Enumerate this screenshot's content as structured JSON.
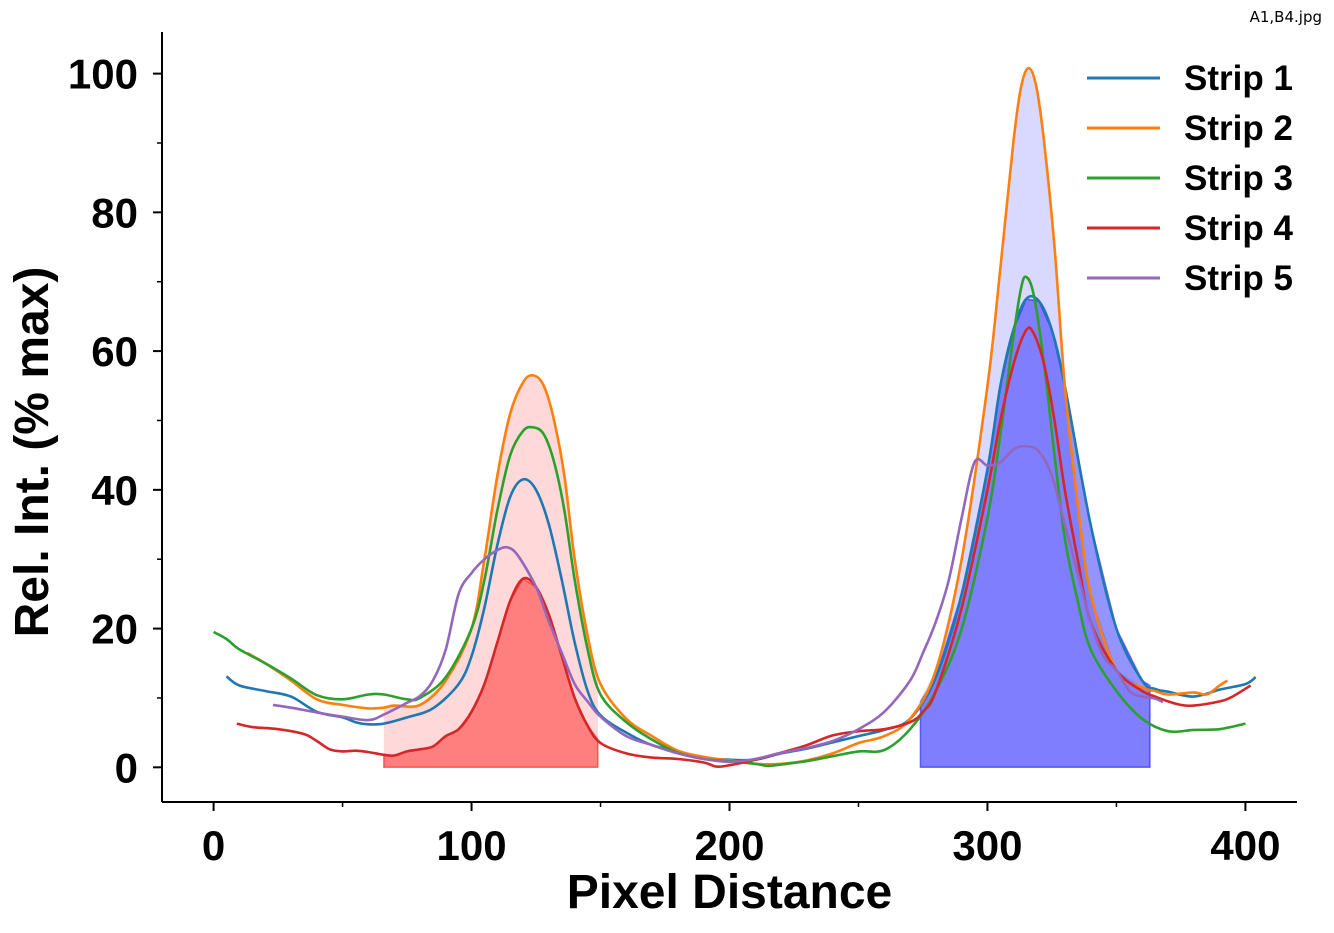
{
  "file_label": "A1,B4.jpg",
  "chart_data": {
    "type": "line",
    "title": "",
    "xlabel": "Pixel Distance",
    "ylabel": "Rel. Int. (% max)",
    "xlim": [
      -20,
      420
    ],
    "ylim": [
      -5,
      106
    ],
    "x_ticks": [
      0,
      100,
      200,
      300,
      400
    ],
    "y_ticks": [
      0,
      20,
      40,
      60,
      80,
      100
    ],
    "grid": false,
    "legend_position": "top-right",
    "colors": {
      "strip1": "#1f77b4",
      "strip2": "#ff7f0e",
      "strip3": "#2ca02c",
      "strip4": "#d62728",
      "strip5": "#9467bd",
      "region1_fill": "#ff0000",
      "region2_fill": "#0000ff"
    },
    "shaded_regions": [
      {
        "x_range": [
          66,
          149
        ],
        "envelope": "Strip 2",
        "inner": "Strip 4",
        "color": "#ff0000"
      },
      {
        "x_range": [
          274,
          363
        ],
        "envelope": "Strip 2",
        "inner": "Strip 1",
        "color": "#0000ff"
      }
    ],
    "series": [
      {
        "name": "Strip 1",
        "color": "#1f77b4",
        "points": [
          [
            5,
            13.1
          ],
          [
            10,
            11.8
          ],
          [
            20,
            11
          ],
          [
            30,
            10.2
          ],
          [
            40,
            8
          ],
          [
            50,
            7.2
          ],
          [
            55,
            6.5
          ],
          [
            60,
            6.2
          ],
          [
            66,
            6.3
          ],
          [
            75,
            7.2
          ],
          [
            85,
            8.5
          ],
          [
            95,
            12
          ],
          [
            100,
            16
          ],
          [
            105,
            23
          ],
          [
            110,
            32
          ],
          [
            115,
            39
          ],
          [
            120,
            41.5
          ],
          [
            125,
            40
          ],
          [
            130,
            35
          ],
          [
            135,
            27
          ],
          [
            140,
            18
          ],
          [
            145,
            11
          ],
          [
            150,
            7.5
          ],
          [
            160,
            5
          ],
          [
            170,
            3.2
          ],
          [
            180,
            2.3
          ],
          [
            190,
            1.4
          ],
          [
            200,
            1.1
          ],
          [
            210,
            1.1
          ],
          [
            220,
            2
          ],
          [
            230,
            2.7
          ],
          [
            240,
            3.6
          ],
          [
            250,
            4.5
          ],
          [
            260,
            5.4
          ],
          [
            270,
            7
          ],
          [
            280,
            13
          ],
          [
            290,
            25
          ],
          [
            300,
            43
          ],
          [
            305,
            55
          ],
          [
            310,
            63
          ],
          [
            315,
            67.5
          ],
          [
            320,
            67.2
          ],
          [
            325,
            63
          ],
          [
            330,
            55
          ],
          [
            340,
            35
          ],
          [
            350,
            20
          ],
          [
            360,
            12.5
          ],
          [
            365,
            11.3
          ],
          [
            370,
            10.9
          ],
          [
            380,
            10.2
          ],
          [
            390,
            11.2
          ],
          [
            400,
            12
          ],
          [
            404,
            13
          ]
        ]
      },
      {
        "name": "Strip 2",
        "color": "#ff7f0e",
        "points": [
          [
            13,
            16.5
          ],
          [
            20,
            15
          ],
          [
            30,
            12.5
          ],
          [
            40,
            9.8
          ],
          [
            50,
            9
          ],
          [
            60,
            8.5
          ],
          [
            66,
            8.6
          ],
          [
            70,
            8.9
          ],
          [
            80,
            9
          ],
          [
            90,
            12.5
          ],
          [
            100,
            20
          ],
          [
            105,
            30
          ],
          [
            110,
            42
          ],
          [
            115,
            51
          ],
          [
            120,
            55.5
          ],
          [
            124,
            56.5
          ],
          [
            128,
            55
          ],
          [
            132,
            50
          ],
          [
            136,
            42
          ],
          [
            140,
            30
          ],
          [
            145,
            19
          ],
          [
            150,
            12
          ],
          [
            160,
            7
          ],
          [
            170,
            4.5
          ],
          [
            180,
            2.4
          ],
          [
            190,
            1.5
          ],
          [
            200,
            1
          ],
          [
            210,
            0.5
          ],
          [
            220,
            0.5
          ],
          [
            230,
            1
          ],
          [
            240,
            2
          ],
          [
            250,
            3.5
          ],
          [
            260,
            4.5
          ],
          [
            270,
            7
          ],
          [
            280,
            14
          ],
          [
            290,
            30
          ],
          [
            300,
            55
          ],
          [
            305,
            72
          ],
          [
            310,
            90
          ],
          [
            313,
            98
          ],
          [
            316,
            100.8
          ],
          [
            319,
            98
          ],
          [
            322,
            90
          ],
          [
            326,
            75
          ],
          [
            330,
            55
          ],
          [
            335,
            38
          ],
          [
            340,
            25
          ],
          [
            350,
            14
          ],
          [
            360,
            11.5
          ],
          [
            365,
            11
          ],
          [
            370,
            10.5
          ],
          [
            380,
            10.8
          ],
          [
            385,
            10.5
          ],
          [
            390,
            11.8
          ],
          [
            393,
            12.5
          ]
        ]
      },
      {
        "name": "Strip 3",
        "color": "#2ca02c",
        "points": [
          [
            0,
            19.5
          ],
          [
            5,
            18.5
          ],
          [
            10,
            17
          ],
          [
            20,
            15
          ],
          [
            30,
            12.8
          ],
          [
            40,
            10.4
          ],
          [
            50,
            9.8
          ],
          [
            60,
            10.5
          ],
          [
            66,
            10.5
          ],
          [
            75,
            9.8
          ],
          [
            80,
            10
          ],
          [
            90,
            13
          ],
          [
            100,
            20
          ],
          [
            105,
            27
          ],
          [
            110,
            37
          ],
          [
            115,
            45
          ],
          [
            120,
            48.5
          ],
          [
            124,
            49
          ],
          [
            128,
            48
          ],
          [
            132,
            44
          ],
          [
            136,
            37
          ],
          [
            140,
            27
          ],
          [
            145,
            17
          ],
          [
            150,
            10.5
          ],
          [
            160,
            6.5
          ],
          [
            170,
            4
          ],
          [
            180,
            2.1
          ],
          [
            190,
            1.2
          ],
          [
            200,
            0.9
          ],
          [
            210,
            0.5
          ],
          [
            215,
            0.2
          ],
          [
            220,
            0.4
          ],
          [
            230,
            0.9
          ],
          [
            240,
            1.6
          ],
          [
            250,
            2.3
          ],
          [
            260,
            2.5
          ],
          [
            270,
            5.5
          ],
          [
            280,
            11
          ],
          [
            290,
            20
          ],
          [
            300,
            36
          ],
          [
            305,
            48
          ],
          [
            310,
            62
          ],
          [
            313,
            69
          ],
          [
            315,
            70.7
          ],
          [
            318,
            68
          ],
          [
            322,
            58
          ],
          [
            326,
            45
          ],
          [
            330,
            33
          ],
          [
            335,
            24
          ],
          [
            340,
            17
          ],
          [
            350,
            11
          ],
          [
            360,
            7
          ],
          [
            370,
            5.2
          ],
          [
            380,
            5.4
          ],
          [
            390,
            5.5
          ],
          [
            400,
            6.3
          ]
        ]
      },
      {
        "name": "Strip 4",
        "color": "#d62728",
        "points": [
          [
            9,
            6.3
          ],
          [
            15,
            5.8
          ],
          [
            25,
            5.5
          ],
          [
            35,
            4.8
          ],
          [
            40,
            3.8
          ],
          [
            45,
            2.6
          ],
          [
            50,
            2.3
          ],
          [
            55,
            2.4
          ],
          [
            60,
            2.2
          ],
          [
            66,
            1.8
          ],
          [
            70,
            1.7
          ],
          [
            75,
            2.3
          ],
          [
            80,
            2.6
          ],
          [
            85,
            3
          ],
          [
            90,
            4.5
          ],
          [
            95,
            5.5
          ],
          [
            100,
            8
          ],
          [
            105,
            12
          ],
          [
            110,
            18
          ],
          [
            115,
            24
          ],
          [
            120,
            27.2
          ],
          [
            125,
            26
          ],
          [
            130,
            22
          ],
          [
            135,
            16
          ],
          [
            140,
            10
          ],
          [
            145,
            6
          ],
          [
            150,
            3.5
          ],
          [
            160,
            2
          ],
          [
            170,
            1.4
          ],
          [
            180,
            1.2
          ],
          [
            190,
            0.7
          ],
          [
            195,
            0.1
          ],
          [
            200,
            0.3
          ],
          [
            210,
            1.1
          ],
          [
            220,
            2.1
          ],
          [
            230,
            3.2
          ],
          [
            240,
            4.6
          ],
          [
            250,
            5.2
          ],
          [
            260,
            5.5
          ],
          [
            270,
            6.5
          ],
          [
            275,
            8
          ],
          [
            280,
            11
          ],
          [
            290,
            23
          ],
          [
            300,
            40
          ],
          [
            305,
            50
          ],
          [
            310,
            58
          ],
          [
            315,
            63
          ],
          [
            318,
            62.5
          ],
          [
            322,
            58
          ],
          [
            326,
            50
          ],
          [
            330,
            40
          ],
          [
            335,
            30
          ],
          [
            340,
            21
          ],
          [
            350,
            14
          ],
          [
            360,
            11
          ],
          [
            365,
            10.2
          ],
          [
            370,
            9.5
          ],
          [
            375,
            9
          ],
          [
            380,
            8.9
          ],
          [
            390,
            9.5
          ],
          [
            395,
            10.2
          ],
          [
            402,
            11.8
          ]
        ]
      },
      {
        "name": "Strip 5",
        "color": "#9467bd",
        "points": [
          [
            23,
            9
          ],
          [
            30,
            8.6
          ],
          [
            40,
            7.9
          ],
          [
            50,
            7.3
          ],
          [
            60,
            6.8
          ],
          [
            66,
            7.6
          ],
          [
            75,
            9.3
          ],
          [
            80,
            10.3
          ],
          [
            85,
            12.5
          ],
          [
            90,
            17
          ],
          [
            95,
            25
          ],
          [
            100,
            28
          ],
          [
            105,
            30
          ],
          [
            110,
            31.3
          ],
          [
            114,
            31.7
          ],
          [
            118,
            30.5
          ],
          [
            125,
            26
          ],
          [
            130,
            21
          ],
          [
            135,
            16.5
          ],
          [
            140,
            12
          ],
          [
            145,
            9.5
          ],
          [
            150,
            7.3
          ],
          [
            160,
            4.5
          ],
          [
            170,
            3.2
          ],
          [
            180,
            2
          ],
          [
            190,
            1.2
          ],
          [
            200,
            0.8
          ],
          [
            210,
            1.2
          ],
          [
            220,
            2.1
          ],
          [
            230,
            2.8
          ],
          [
            240,
            3.8
          ],
          [
            250,
            5.5
          ],
          [
            260,
            8
          ],
          [
            270,
            12.5
          ],
          [
            275,
            16.5
          ],
          [
            280,
            21
          ],
          [
            285,
            27
          ],
          [
            290,
            36
          ],
          [
            295,
            44
          ],
          [
            300,
            43.5
          ],
          [
            305,
            44
          ],
          [
            310,
            45.8
          ],
          [
            315,
            46.3
          ],
          [
            320,
            45.5
          ],
          [
            325,
            42
          ],
          [
            330,
            35
          ],
          [
            335,
            28
          ],
          [
            340,
            21
          ],
          [
            345,
            16
          ],
          [
            350,
            14
          ],
          [
            355,
            11
          ],
          [
            360,
            10.2
          ],
          [
            365,
            9.9
          ],
          [
            368,
            9.4
          ]
        ]
      }
    ]
  }
}
